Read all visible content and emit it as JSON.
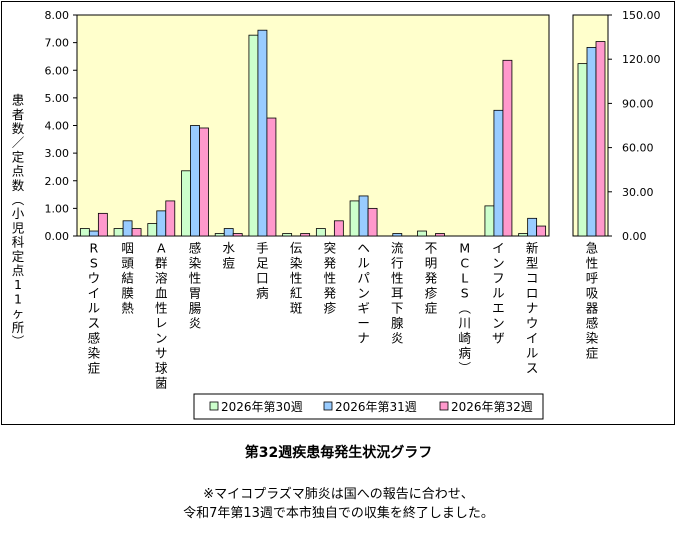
{
  "chart_data": [
    {
      "type": "bar",
      "ylabel": "患者数／定点数（小児科定点11ヶ所）",
      "ylim": [
        0,
        8
      ],
      "y_ticks": [
        "0.00",
        "1.00",
        "2.00",
        "3.00",
        "4.00",
        "5.00",
        "6.00",
        "7.00",
        "8.00"
      ],
      "categories": [
        "RSウイルス感染症",
        "咽頭結膜熱",
        "A群溶血性レンサ球菌",
        "感染性胃腸炎",
        "水痘",
        "手足口病",
        "伝染性紅斑",
        "突発性発疹",
        "ヘルパンギーナ",
        "流行性耳下腺炎",
        "不明発疹症",
        "MCLS（川崎病）",
        "インフルエンザ",
        "新型コロナウイルス"
      ],
      "series": [
        {
          "name": "2026年第30週",
          "color": "#ccffcc",
          "values": [
            0.27,
            0.27,
            0.45,
            2.36,
            0.09,
            7.27,
            0.09,
            0.27,
            1.27,
            0.0,
            0.18,
            0.0,
            1.09,
            0.09
          ]
        },
        {
          "name": "2026年第31週",
          "color": "#99ccff",
          "values": [
            0.18,
            0.55,
            0.91,
            4.0,
            0.27,
            7.45,
            0.0,
            0.0,
            1.45,
            0.09,
            0.0,
            0.0,
            4.55,
            0.64
          ]
        },
        {
          "name": "2026年第32週",
          "color": "#ff99cc",
          "values": [
            0.82,
            0.27,
            1.27,
            3.91,
            0.09,
            4.27,
            0.09,
            0.55,
            1.0,
            0.0,
            0.09,
            0.0,
            6.36,
            0.36
          ]
        }
      ],
      "legend": "bottom",
      "grid": false,
      "background": "#ffffcc"
    },
    {
      "type": "bar",
      "ylim": [
        0,
        150
      ],
      "y_ticks": [
        "0.00",
        "30.00",
        "60.00",
        "90.00",
        "120.00",
        "150.00"
      ],
      "categories": [
        "急性呼吸器感染症"
      ],
      "series": [
        {
          "name": "2026年第30週",
          "color": "#ccffcc",
          "values": [
            117
          ]
        },
        {
          "name": "2026年第31週",
          "color": "#99ccff",
          "values": [
            128
          ]
        },
        {
          "name": "2026年第32週",
          "color": "#ff99cc",
          "values": [
            132
          ]
        }
      ],
      "grid": false,
      "background": "#ffffcc"
    }
  ],
  "title": "第32週疾患毎発生状況グラフ",
  "note_line1": "※マイコプラズマ肺炎は国への報告に合わせ、",
  "note_line2": "令和7年第13週で本市独自での収集を終了しました。"
}
